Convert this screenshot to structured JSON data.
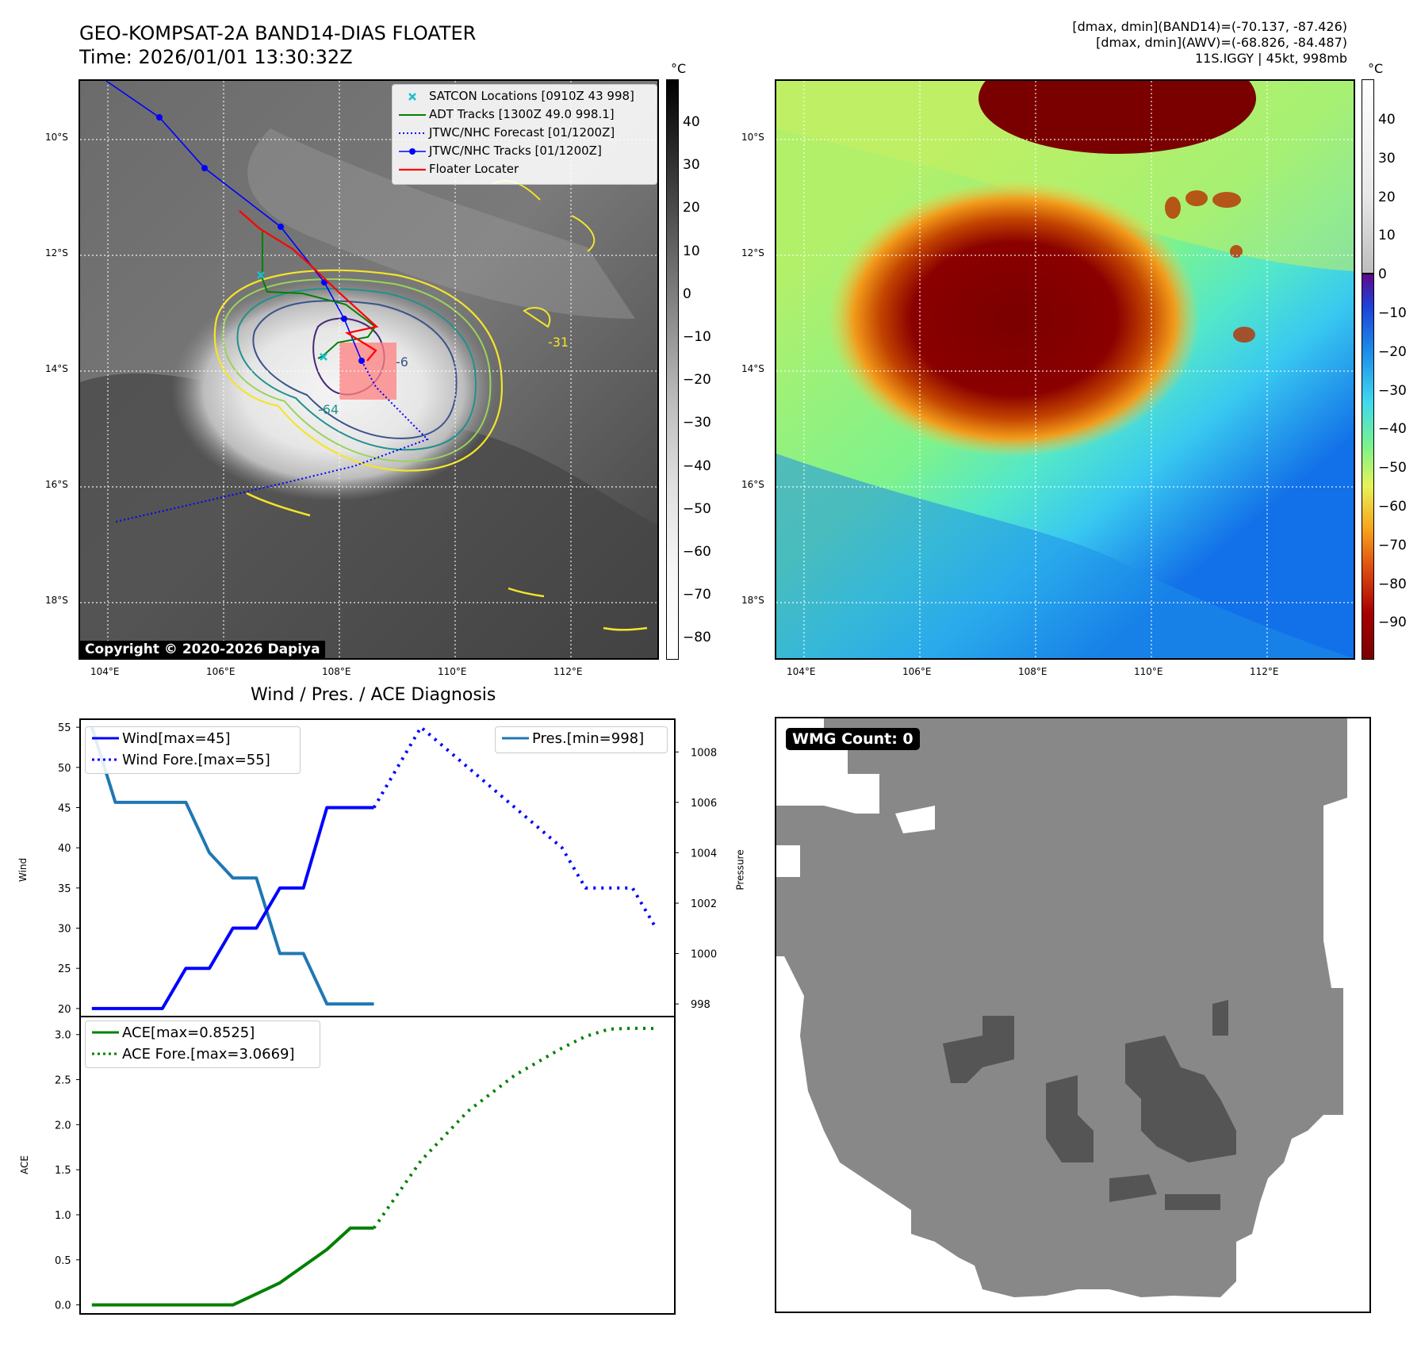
{
  "header": {
    "title_line1": "GEO-KOMPSAT-2A BAND14-DIAS FLOATER",
    "title_line2": "Time: 2026/01/01 13:30:32Z",
    "info_line1": "[dmax, dmin](BAND14)=(-70.137, -87.426)",
    "info_line2": "[dmax, dmin](AWV)=(-68.826, -84.487)",
    "info_line3": "11S.IGGY | 45kt, 998mb"
  },
  "map_axes": {
    "lat_labels": [
      "10°S",
      "12°S",
      "14°S",
      "16°S",
      "18°S"
    ],
    "lon_labels": [
      "104°E",
      "106°E",
      "108°E",
      "110°E",
      "112°E"
    ]
  },
  "ir_panel": {
    "colorbar_unit": "°C",
    "colorbar_ticks": [
      "40",
      "30",
      "20",
      "10",
      "0",
      "−10",
      "−20",
      "−30",
      "−40",
      "−50",
      "−60",
      "−70",
      "−80"
    ],
    "legend": [
      {
        "label": "SATCON Locations [0910Z 43 998]",
        "color": "#17becf",
        "icon": "x-marker-icon"
      },
      {
        "label": "ADT Tracks [1300Z 49.0 998.1]",
        "color": "#008000",
        "icon": "solid-line-icon"
      },
      {
        "label": "JTWC/NHC Forecast [01/1200Z]",
        "color": "#0000ff",
        "icon": "dotted-line-icon"
      },
      {
        "label": "JTWC/NHC Tracks [01/1200Z]",
        "color": "#0000ff",
        "icon": "line-dot-icon"
      },
      {
        "label": "Floater Locater",
        "color": "#ff0000",
        "icon": "solid-line-icon"
      }
    ],
    "contour_labels": [
      "-64",
      "-31",
      "-6"
    ],
    "copyright": "Copyright © 2020-2026 Dapiya"
  },
  "awv_panel": {
    "colorbar_unit": "°C",
    "colorbar_ticks": [
      "40",
      "30",
      "20",
      "10",
      "0",
      "−10",
      "−20",
      "−30",
      "−40",
      "−50",
      "−60",
      "−70",
      "−80",
      "−90"
    ]
  },
  "wmg_panel": {
    "badge": "WMG Count: 0"
  },
  "colors": {
    "wind": "#0000ff",
    "pressure": "#1f77b4",
    "ace": "#008000",
    "floater": "#ff0000",
    "satcon": "#17becf"
  },
  "chart_data": [
    {
      "type": "line",
      "title": "Wind / Pres. / ACE Diagnosis",
      "ylabel": "Wind",
      "ylim": [
        19,
        56
      ],
      "yticks": [
        "55",
        "50",
        "45",
        "40",
        "35",
        "30",
        "25",
        "20"
      ],
      "y2label": "Pressure",
      "y2lim": [
        997.5,
        1009.3
      ],
      "y2ticks": [
        "1008",
        "1006",
        "1004",
        "1002",
        "1000",
        "998"
      ],
      "legend_left": [
        "Wind[max=45]",
        "Wind Fore.[max=55]"
      ],
      "legend_right": [
        "Pres.[min=998]"
      ],
      "series": [
        {
          "name": "Wind[max=45]",
          "axis": "left",
          "style": "solid",
          "x": [
            0,
            1,
            2,
            3,
            4,
            5,
            6,
            7,
            8,
            9,
            10,
            11,
            12
          ],
          "values": [
            20,
            20,
            20,
            20,
            25,
            25,
            30,
            30,
            35,
            35,
            45,
            45,
            45
          ]
        },
        {
          "name": "Wind Fore.[max=55]",
          "axis": "left",
          "style": "dotted",
          "x": [
            12,
            14,
            16,
            18,
            20,
            21,
            22,
            23,
            24
          ],
          "values": [
            45,
            55,
            50,
            45,
            40,
            35,
            35,
            35,
            30
          ]
        },
        {
          "name": "Pres.[min=998]",
          "axis": "right",
          "style": "solid",
          "x": [
            0,
            1,
            2,
            3,
            4,
            5,
            6,
            7,
            8,
            9,
            10,
            11,
            12
          ],
          "values": [
            1009,
            1006,
            1006,
            1006,
            1006,
            1004,
            1003,
            1003,
            1000,
            1000,
            998,
            998,
            998
          ]
        }
      ]
    },
    {
      "type": "line",
      "ylabel": "ACE",
      "ylim": [
        -0.1,
        3.2
      ],
      "yticks": [
        "3.0",
        "2.5",
        "2.0",
        "1.5",
        "1.0",
        "0.5",
        "0.0"
      ],
      "legend": [
        "ACE[max=0.8525]",
        "ACE Fore.[max=3.0669]"
      ],
      "series": [
        {
          "name": "ACE[max=0.8525]",
          "style": "solid",
          "x": [
            0,
            1,
            2,
            3,
            4,
            5,
            6,
            7,
            8,
            9,
            10,
            11,
            12
          ],
          "values": [
            0,
            0,
            0,
            0,
            0,
            0,
            0,
            0.122,
            0.245,
            0.43,
            0.615,
            0.8525,
            0.8525
          ]
        },
        {
          "name": "ACE Fore.[max=3.0669]",
          "style": "dotted",
          "x": [
            12,
            14,
            16,
            18,
            20,
            21,
            22,
            23,
            24
          ],
          "values": [
            0.8525,
            1.6,
            2.15,
            2.55,
            2.85,
            2.98,
            3.06,
            3.07,
            3.0669
          ]
        }
      ]
    }
  ]
}
